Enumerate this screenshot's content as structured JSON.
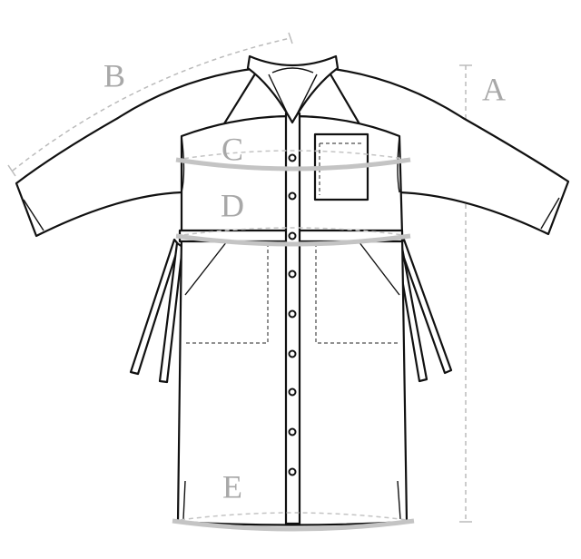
{
  "labels": {
    "a": "A",
    "b": "B",
    "c": "C",
    "d": "D",
    "e": "E"
  }
}
